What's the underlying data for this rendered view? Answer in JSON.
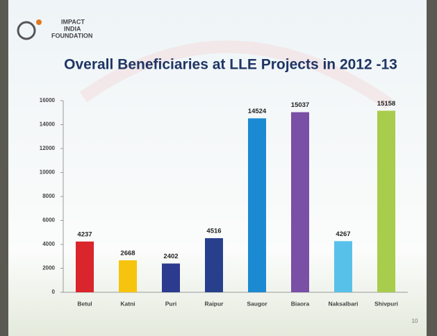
{
  "logo": {
    "line1": "IMPACT",
    "line2": "INDIA",
    "line3": "FOUNDATION"
  },
  "page_number": "10",
  "chart_data": {
    "type": "bar",
    "title": "Overall Beneficiaries at LLE Projects in 2012 -13",
    "categories": [
      "Betul",
      "Katni",
      "Puri",
      "Raipur",
      "Saugor",
      "Biaora",
      "Naksalbari",
      "Shivpuri"
    ],
    "values": [
      4237,
      2668,
      2402,
      4516,
      14524,
      15037,
      4267,
      15158
    ],
    "colors": [
      "#d9252b",
      "#f6c40f",
      "#2c3b8e",
      "#283f8c",
      "#1b8ad2",
      "#7a4fa6",
      "#58c1ea",
      "#a8cc4c"
    ],
    "ylim": [
      0,
      16000
    ],
    "yticks": [
      0,
      2000,
      4000,
      6000,
      8000,
      10000,
      12000,
      14000,
      16000
    ],
    "grid": false
  }
}
